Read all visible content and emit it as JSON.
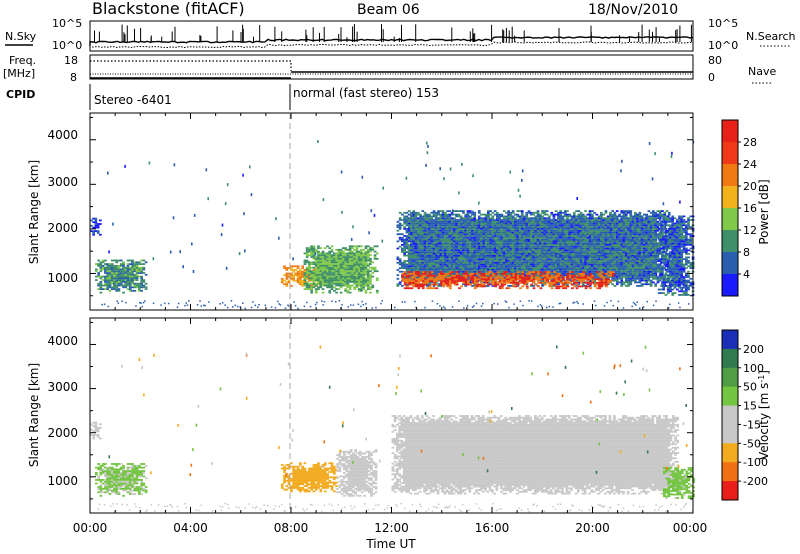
{
  "header": {
    "station": "Blackstone (fitACF)",
    "beam": "Beam 06",
    "date": "18/Nov/2010"
  },
  "top_panels": {
    "nsky_label": "N.Sky",
    "nsearch_label": "N.Search",
    "freq_label_1": "Freq.",
    "freq_label_2": "[MHz]",
    "nave_label": "Nave",
    "cpid_label": "CPID",
    "nsky_ticks": [
      "10^5",
      "10^0"
    ],
    "nsearch_ticks": [
      "10^5",
      "10^0"
    ],
    "freq_ticks": [
      "18",
      "8"
    ],
    "nave_ticks": [
      "80",
      "0"
    ],
    "cpid_segments": [
      {
        "label": "Stereo -6401",
        "start_hour": 0,
        "end_hour": 8
      },
      {
        "label": "normal (fast stereo) 153",
        "start_hour": 8,
        "end_hour": 24
      }
    ]
  },
  "axes": {
    "xlabel": "Time UT",
    "ylabel": "Slant Range [km]",
    "x_ticks": [
      "00:00",
      "04:00",
      "08:00",
      "12:00",
      "16:00",
      "20:00",
      "00:00"
    ],
    "y_ticks": [
      "1000",
      "2000",
      "3000",
      "4000"
    ]
  },
  "colorbars": {
    "power": {
      "label": "Power [dB]",
      "ticks": [
        "4",
        "8",
        "12",
        "16",
        "20",
        "24",
        "28"
      ]
    },
    "velocity": {
      "label": "Velocity [m s",
      "label_sup": "-1",
      "label_end": "]",
      "ticks": [
        "200",
        "100",
        "50",
        "15",
        "-15",
        "-50",
        "-100",
        "-200"
      ]
    }
  },
  "chart_data": [
    {
      "type": "heatmap",
      "title": "Power [dB]",
      "xlabel": "Time UT",
      "ylabel": "Slant Range [km]",
      "xlim": [
        0,
        24
      ],
      "ylim": [
        180,
        4600
      ],
      "color_scale": [
        {
          "value": 4,
          "color": "#1a1aff"
        },
        {
          "value": 8,
          "color": "#2a5fb0"
        },
        {
          "value": 12,
          "color": "#3f8f6a"
        },
        {
          "value": 16,
          "color": "#7fc84a"
        },
        {
          "value": 20,
          "color": "#f2b21b"
        },
        {
          "value": 24,
          "color": "#f27a14"
        },
        {
          "value": 28,
          "color": "#e8211b"
        }
      ],
      "regions": [
        {
          "t0": 0.0,
          "t1": 0.4,
          "r0": 1850,
          "r1": 2250,
          "power": 6
        },
        {
          "t0": 0.2,
          "t1": 2.2,
          "r0": 550,
          "r1": 1300,
          "power": 12
        },
        {
          "t0": 7.6,
          "t1": 9.2,
          "r0": 700,
          "r1": 1150,
          "power": 22
        },
        {
          "t0": 8.5,
          "t1": 11.4,
          "r0": 550,
          "r1": 1600,
          "power": 14
        },
        {
          "t0": 12.2,
          "t1": 23.0,
          "r0": 700,
          "r1": 2400,
          "power": 9
        },
        {
          "t0": 12.4,
          "t1": 20.8,
          "r0": 650,
          "r1": 1050,
          "power": 26
        },
        {
          "t0": 22.6,
          "t1": 24.0,
          "r0": 500,
          "r1": 2300,
          "power": 8
        }
      ]
    },
    {
      "type": "heatmap",
      "title": "Velocity [m s-1]",
      "xlabel": "Time UT",
      "ylabel": "Slant Range [km]",
      "xlim": [
        0,
        24
      ],
      "ylim": [
        180,
        4600
      ],
      "color_scale": [
        {
          "value": 200,
          "color": "#1a2fb5"
        },
        {
          "value": 100,
          "color": "#2f7a4f"
        },
        {
          "value": 50,
          "color": "#73c542"
        },
        {
          "value": 15,
          "color": "#c8c8c8"
        },
        {
          "value": -15,
          "color": "#c8c8c8"
        },
        {
          "value": -50,
          "color": "#f2aa1e"
        },
        {
          "value": -100,
          "color": "#f27014"
        },
        {
          "value": -200,
          "color": "#e81e1a"
        }
      ],
      "regions": [
        {
          "t0": 0.0,
          "t1": 0.4,
          "r0": 1850,
          "r1": 2250,
          "velocity": 0
        },
        {
          "t0": 0.2,
          "t1": 2.2,
          "r0": 550,
          "r1": 1300,
          "velocity": 40
        },
        {
          "t0": 7.6,
          "t1": 9.8,
          "r0": 650,
          "r1": 1300,
          "velocity": -60
        },
        {
          "t0": 9.8,
          "t1": 11.4,
          "r0": 550,
          "r1": 1600,
          "velocity": 0
        },
        {
          "t0": 12.0,
          "t1": 23.4,
          "r0": 600,
          "r1": 2400,
          "velocity": 0
        },
        {
          "t0": 22.8,
          "t1": 24.0,
          "r0": 500,
          "r1": 1200,
          "velocity": 45
        }
      ]
    }
  ]
}
